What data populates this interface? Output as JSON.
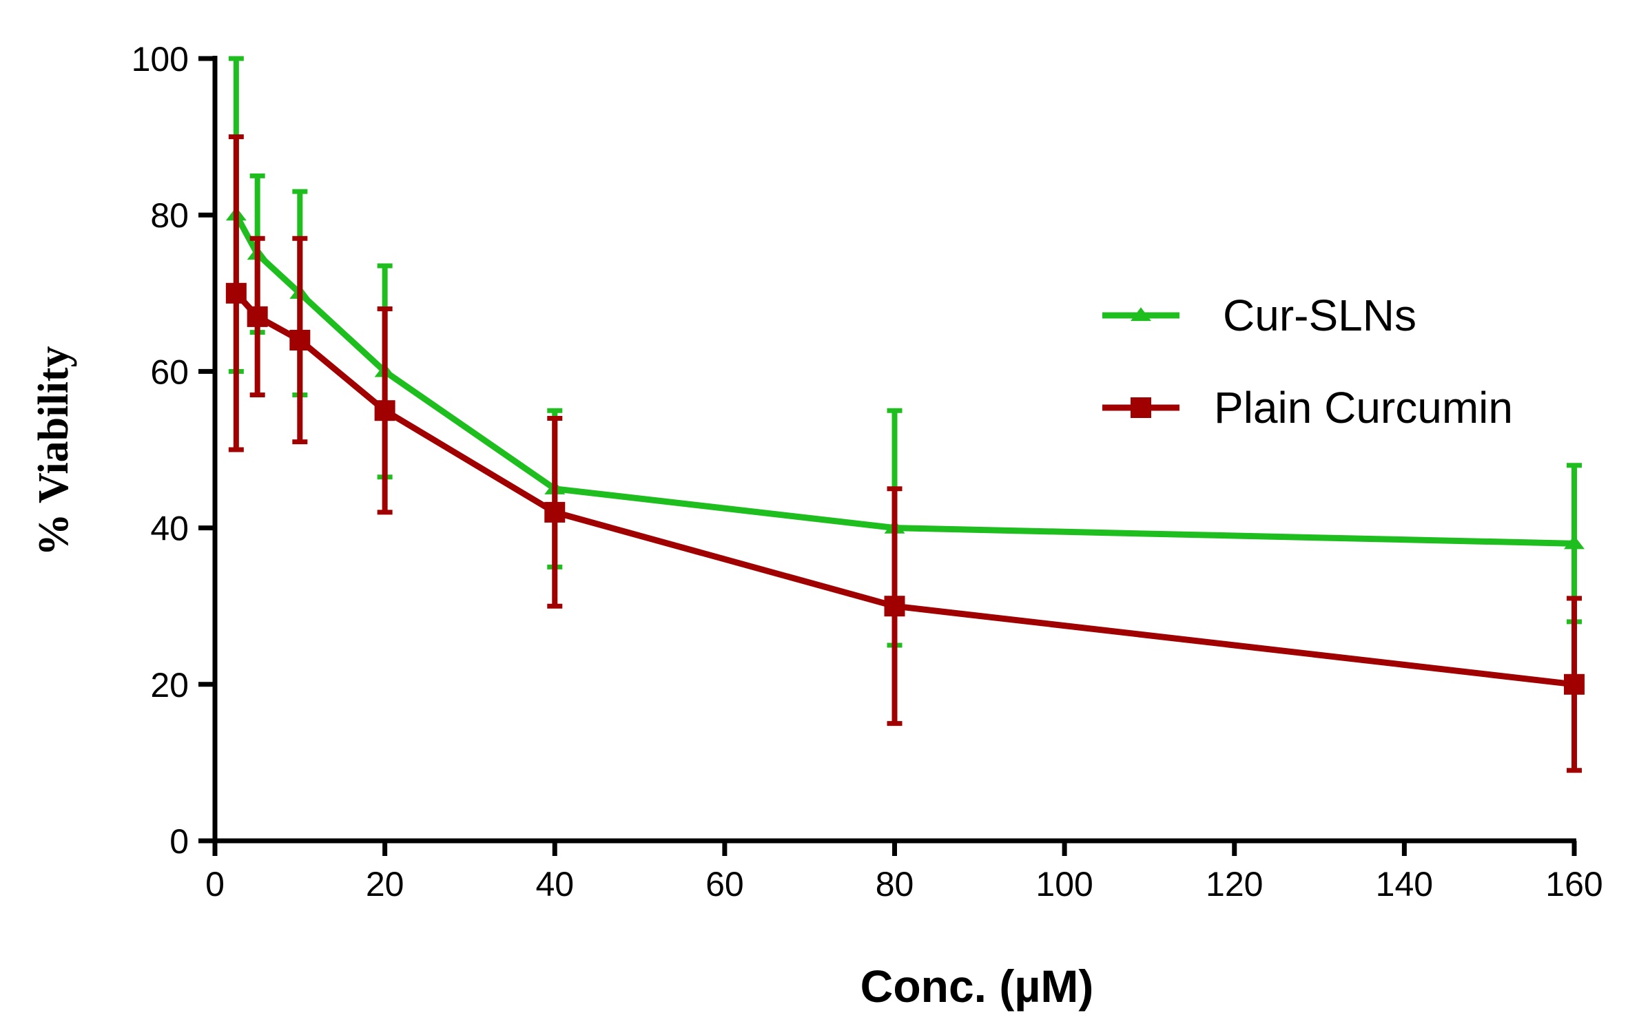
{
  "chart_data": {
    "type": "line",
    "title": "",
    "xlabel": "Conc. (µM)",
    "ylabel": "% Viability",
    "xlim": [
      0,
      160
    ],
    "ylim": [
      0,
      100
    ],
    "xticks": [
      0,
      20,
      40,
      60,
      80,
      100,
      120,
      140,
      160
    ],
    "yticks": [
      0,
      20,
      40,
      60,
      80,
      100
    ],
    "x_tick_labels": [
      "0",
      "20",
      "40",
      "60",
      "80",
      "100",
      "120",
      "140",
      "160"
    ],
    "y_tick_labels": [
      "0",
      "20",
      "40",
      "60",
      "80",
      "100"
    ],
    "grid": false,
    "legend_position": "right",
    "series": [
      {
        "name": "Cur-SLNs",
        "color": "#1ebe1e",
        "marker": "triangle",
        "x": [
          2.5,
          5,
          10,
          20,
          40,
          80,
          160
        ],
        "y": [
          80,
          75,
          70,
          60,
          45,
          40,
          38
        ],
        "err_low": [
          60,
          65,
          57,
          46.5,
          35,
          25,
          28
        ],
        "err_high": [
          100,
          85,
          83,
          73.5,
          55,
          55,
          48
        ]
      },
      {
        "name": "Plain Curcumin",
        "color": "#a00000",
        "marker": "square",
        "x": [
          2.5,
          5,
          10,
          20,
          40,
          80,
          160
        ],
        "y": [
          70,
          67,
          64,
          55,
          42,
          30,
          20
        ],
        "err_low": [
          50,
          57,
          51,
          42,
          30,
          15,
          9
        ],
        "err_high": [
          90,
          77,
          77,
          68,
          54,
          45,
          31
        ]
      }
    ]
  }
}
